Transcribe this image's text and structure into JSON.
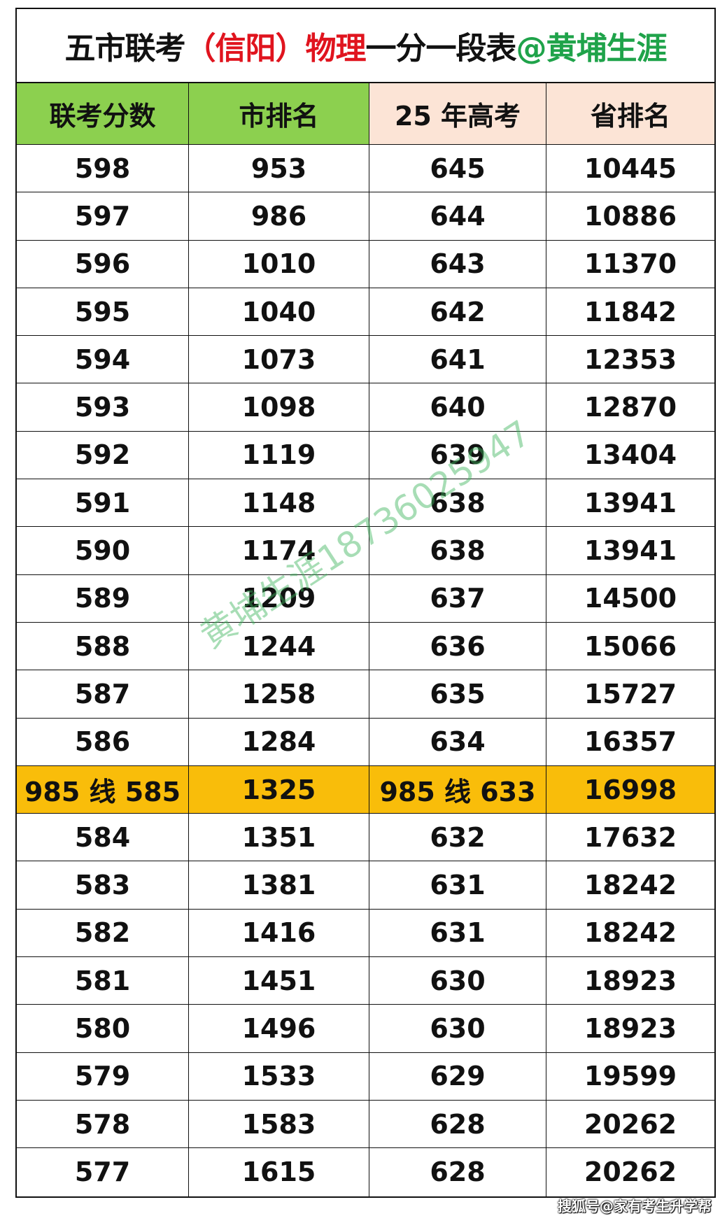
{
  "title": {
    "part1": "五市联考",
    "part2": "（信阳）物理",
    "part3": "一分一段表",
    "part4": "@黄埔生涯"
  },
  "colors": {
    "black": "#111111",
    "red": "#e0141e",
    "green": "#1fa34a",
    "header_green": "#8cd04f",
    "header_pink": "#fce4d6",
    "highlight": "#f9bd0a"
  },
  "headers": [
    "联考分数",
    "市排名",
    "25 年高考",
    "省排名"
  ],
  "rows": [
    [
      "598",
      "953",
      "645",
      "10445"
    ],
    [
      "597",
      "986",
      "644",
      "10886"
    ],
    [
      "596",
      "1010",
      "643",
      "11370"
    ],
    [
      "595",
      "1040",
      "642",
      "11842"
    ],
    [
      "594",
      "1073",
      "641",
      "12353"
    ],
    [
      "593",
      "1098",
      "640",
      "12870"
    ],
    [
      "592",
      "1119",
      "639",
      "13404"
    ],
    [
      "591",
      "1148",
      "638",
      "13941"
    ],
    [
      "590",
      "1174",
      "638",
      "13941"
    ],
    [
      "589",
      "1209",
      "637",
      "14500"
    ],
    [
      "588",
      "1244",
      "636",
      "15066"
    ],
    [
      "587",
      "1258",
      "635",
      "15727"
    ],
    [
      "586",
      "1284",
      "634",
      "16357"
    ],
    [
      "985 线 585",
      "1325",
      "985 线 633",
      "16998"
    ],
    [
      "584",
      "1351",
      "632",
      "17632"
    ],
    [
      "583",
      "1381",
      "631",
      "18242"
    ],
    [
      "582",
      "1416",
      "631",
      "18242"
    ],
    [
      "581",
      "1451",
      "630",
      "18923"
    ],
    [
      "580",
      "1496",
      "630",
      "18923"
    ],
    [
      "579",
      "1533",
      "629",
      "19599"
    ],
    [
      "578",
      "1583",
      "628",
      "20262"
    ],
    [
      "577",
      "1615",
      "628",
      "20262"
    ]
  ],
  "highlight_row": 13,
  "watermark": "黄埔生涯18736025947",
  "footer": "搜狐号@家有考生升学帮"
}
